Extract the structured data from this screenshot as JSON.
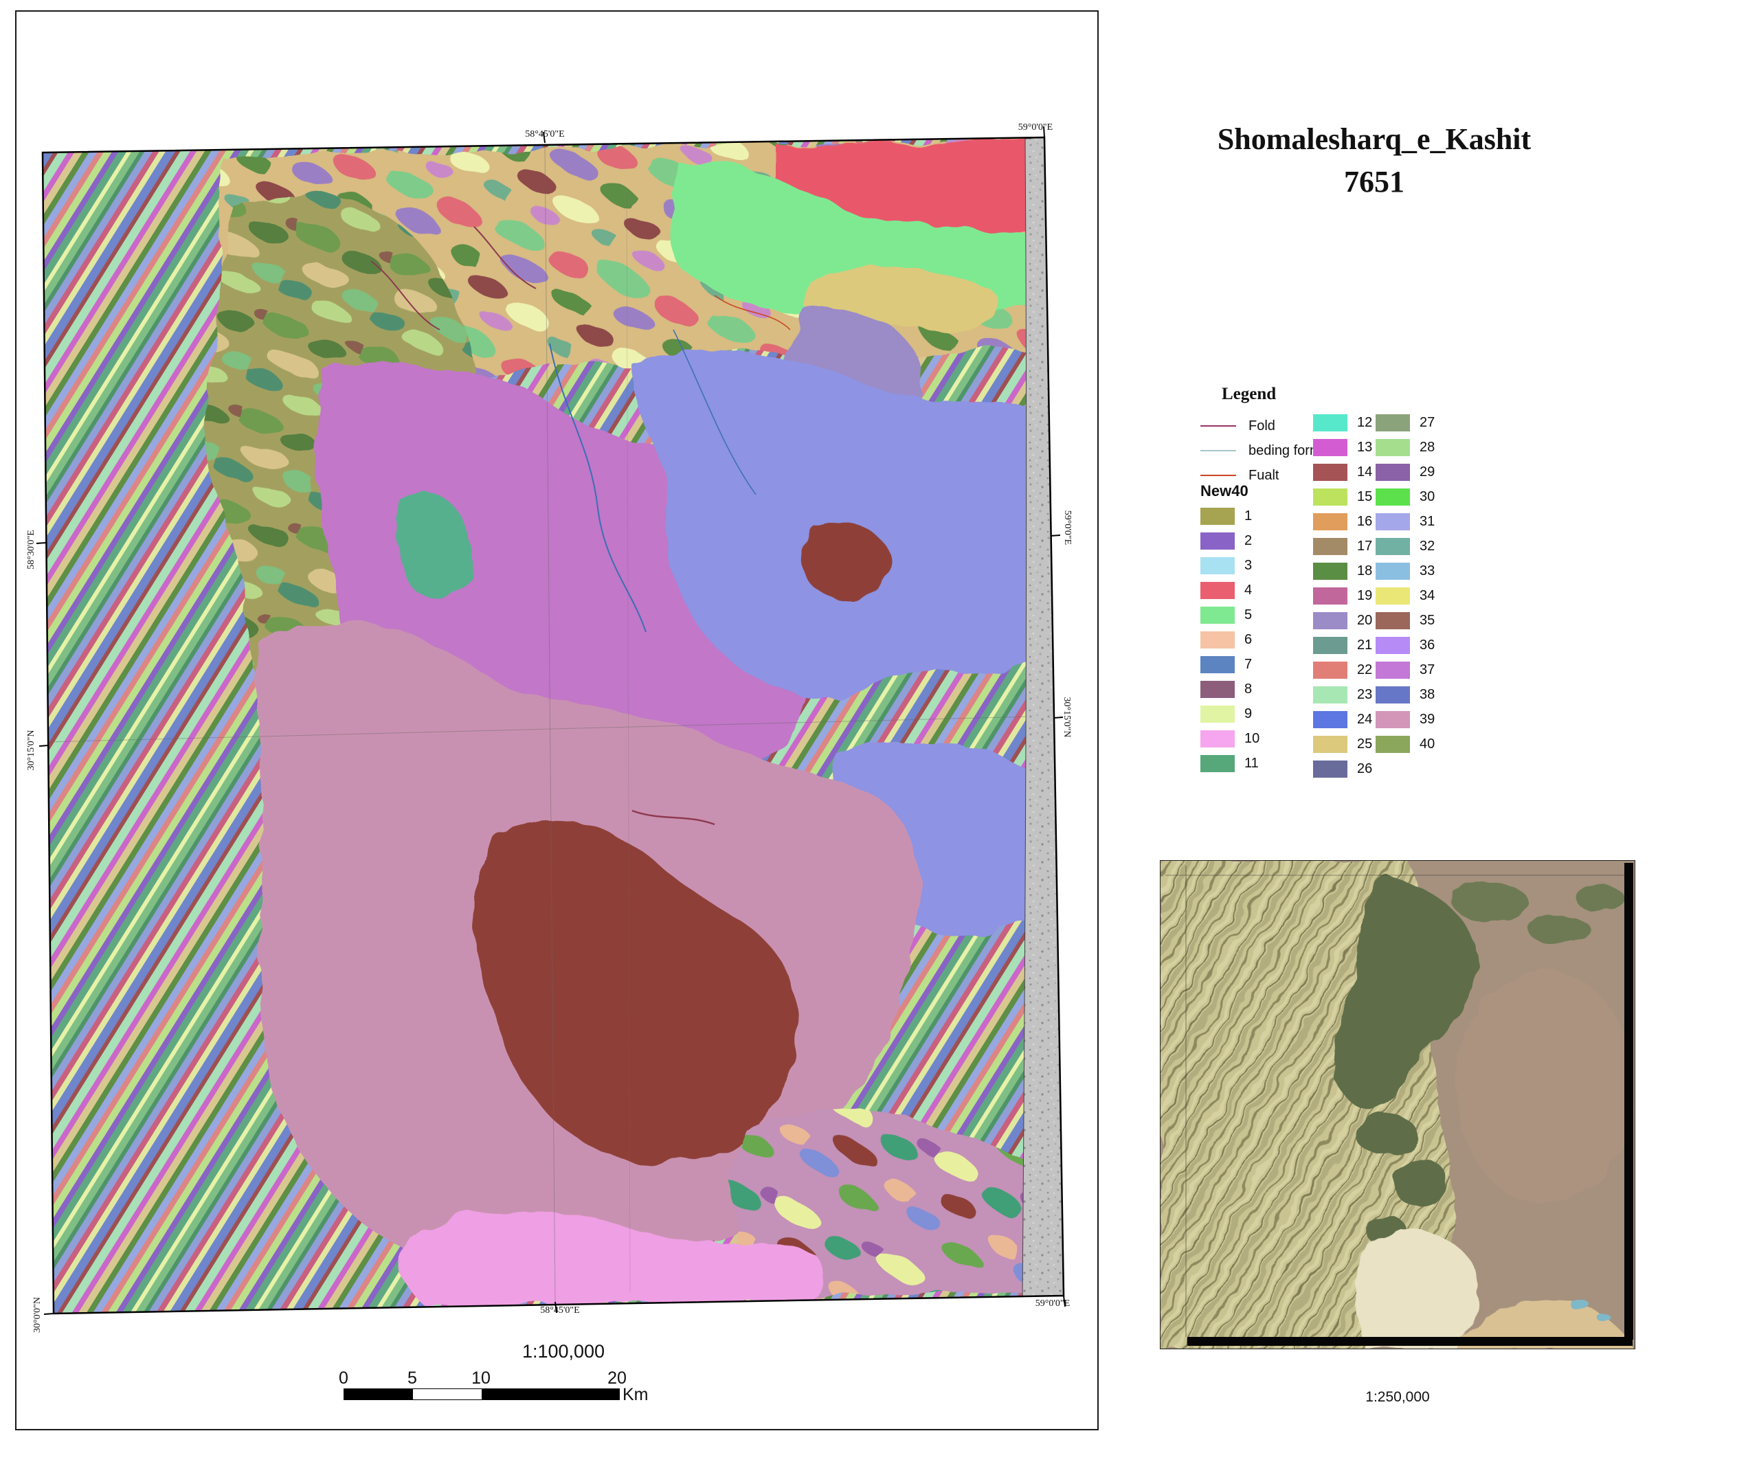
{
  "page": {
    "title_line1": "Shomalesharq_e_Kashit",
    "title_line2": "7651"
  },
  "main_map": {
    "scale_text": "1:100,000",
    "scalebar": {
      "ticks": [
        "0",
        "5",
        "10",
        "20"
      ],
      "unit": "Km"
    },
    "coordinates": {
      "top": [
        "58°45'0\"E",
        "59°0'0\"E"
      ],
      "bottom": [
        "58°45'0\"E",
        "59°0'0\"E"
      ],
      "left": [
        "58°30'0\"E",
        "30°15'0\"N",
        "30°0'0\"N"
      ],
      "right": [
        "59°0'0\"E",
        "30°15'0\"N"
      ]
    }
  },
  "legend": {
    "heading": "Legend",
    "line_items": [
      {
        "label": "Fold",
        "color": "#993366"
      },
      {
        "label": "beding form",
        "color": "#a6c8c8"
      },
      {
        "label": "Fualt",
        "color": "#cc4422"
      }
    ],
    "group_heading": "New40",
    "columns": [
      11,
      15,
      14
    ],
    "items": [
      {
        "id": 1,
        "color": "#a6a351"
      },
      {
        "id": 2,
        "color": "#8a63c6"
      },
      {
        "id": 3,
        "color": "#a8e1f2"
      },
      {
        "id": 4,
        "color": "#e95f70"
      },
      {
        "id": 5,
        "color": "#7fe992"
      },
      {
        "id": 6,
        "color": "#f6c4a4"
      },
      {
        "id": 7,
        "color": "#5c84c0"
      },
      {
        "id": 8,
        "color": "#8d5e7c"
      },
      {
        "id": 9,
        "color": "#e1f4a3"
      },
      {
        "id": 10,
        "color": "#f6a6ef"
      },
      {
        "id": 11,
        "color": "#56a87a"
      },
      {
        "id": 12,
        "color": "#57e8cb"
      },
      {
        "id": 13,
        "color": "#d35cd3"
      },
      {
        "id": 14,
        "color": "#a65355"
      },
      {
        "id": 15,
        "color": "#bce25e"
      },
      {
        "id": 16,
        "color": "#e19d5b"
      },
      {
        "id": 17,
        "color": "#a48b67"
      },
      {
        "id": 18,
        "color": "#5b8e45"
      },
      {
        "id": 19,
        "color": "#c1679b"
      },
      {
        "id": 20,
        "color": "#9b8bc7"
      },
      {
        "id": 21,
        "color": "#6b9b91"
      },
      {
        "id": 22,
        "color": "#e17f77"
      },
      {
        "id": 23,
        "color": "#a7e7b4"
      },
      {
        "id": 24,
        "color": "#5c77e1"
      },
      {
        "id": 25,
        "color": "#dcc97c"
      },
      {
        "id": 26,
        "color": "#696b9b"
      },
      {
        "id": 27,
        "color": "#8ba37b"
      },
      {
        "id": 28,
        "color": "#a5df8e"
      },
      {
        "id": 29,
        "color": "#8b61a7"
      },
      {
        "id": 30,
        "color": "#5ce14c"
      },
      {
        "id": 31,
        "color": "#a4a7e9"
      },
      {
        "id": 32,
        "color": "#71b1a4"
      },
      {
        "id": 33,
        "color": "#8bbfe1"
      },
      {
        "id": 34,
        "color": "#ebe777"
      },
      {
        "id": 35,
        "color": "#9b675b"
      },
      {
        "id": 36,
        "color": "#b68bf6"
      },
      {
        "id": 37,
        "color": "#c377d7"
      },
      {
        "id": 38,
        "color": "#6777c7"
      },
      {
        "id": 39,
        "color": "#d396b9"
      },
      {
        "id": 40,
        "color": "#8ba75b"
      }
    ]
  },
  "map_palette": {
    "crimson": "#e8596b",
    "light_green": "#7fe992",
    "tan": "#dcc97c",
    "purple_gray": "#9b8bc7",
    "orchid": "#c277c8",
    "periwinkle": "#8e93e3",
    "mauve": "#c991b1",
    "brick": "#8e4138",
    "teal": "#57b08e",
    "pink": "#ef9fe4",
    "fold_line": "#8e3a50",
    "bedding_line": "#3a6fb5",
    "fault_line": "#cc4422",
    "graticule": "#666666"
  },
  "inset": {
    "scale_text": "1:250,000"
  }
}
